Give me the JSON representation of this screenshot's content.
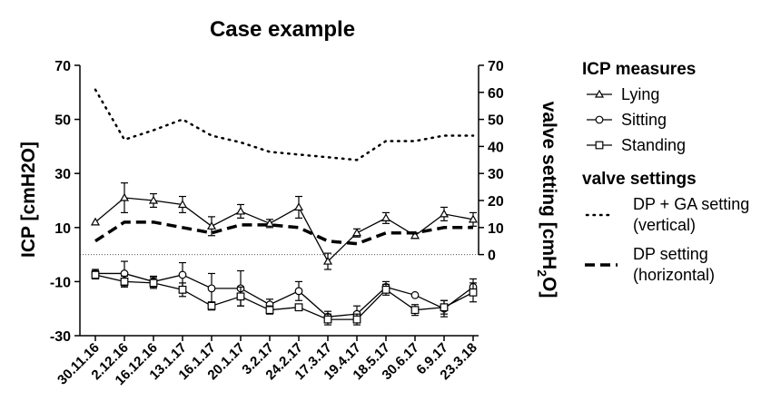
{
  "chart_data": {
    "type": "line",
    "title": "Case example",
    "ylabel": "ICP [cmH2O]",
    "y2label_parts": [
      "valve setting [cmH",
      "2",
      "O]"
    ],
    "ylim": [
      -30,
      70
    ],
    "y_ticks": [
      -30,
      -10,
      10,
      30,
      50,
      70
    ],
    "y2lim": [
      -30,
      70
    ],
    "y2_ticks": [
      0,
      10,
      20,
      30,
      40,
      50,
      60,
      70
    ],
    "categories": [
      "30.11.16",
      "2.12.16",
      "16.12.16",
      "13.1.17",
      "16.1.17",
      "20.1.17",
      "3.2.17",
      "24.2.17",
      "17.3.17",
      "19.4.17",
      "18.5.17",
      "30.6.17",
      "6.9.17",
      "23.3.18"
    ],
    "reference_line": 0,
    "legend": {
      "icp_heading": "ICP measures",
      "valve_heading": "valve settings",
      "valve_items": [
        {
          "series": "dp_ga",
          "lines": [
            "DP + GA setting",
            "(vertical)"
          ]
        },
        {
          "series": "dp",
          "lines": [
            "DP setting",
            "(horizontal)"
          ]
        }
      ]
    },
    "series": [
      {
        "key": "lying",
        "name": "Lying",
        "marker": "triangle",
        "axis": "left",
        "values": [
          12,
          21,
          20,
          18.5,
          10.5,
          16,
          11.5,
          17.5,
          -2.5,
          8,
          13.5,
          7,
          15,
          13
        ],
        "errors": [
          0,
          5.5,
          2.5,
          3,
          3.5,
          2.5,
          1.5,
          4,
          3,
          1.5,
          2,
          1,
          2.5,
          2.5
        ]
      },
      {
        "key": "sitting",
        "name": "Sitting",
        "marker": "circle",
        "axis": "left",
        "values": [
          -7,
          -7,
          -10,
          -7.5,
          -12.5,
          -12.5,
          -18.5,
          -13.5,
          -23,
          -22,
          -12,
          -15,
          -20,
          -12
        ],
        "errors": [
          1.5,
          4.5,
          2,
          4.5,
          5.5,
          6.5,
          2,
          3.5,
          2,
          3,
          2,
          0,
          3,
          3
        ]
      },
      {
        "key": "standing",
        "name": "Standing",
        "marker": "square",
        "axis": "left",
        "values": [
          -7.5,
          -10,
          -10.5,
          -13,
          -19,
          -15.5,
          -20.5,
          -19.5,
          -24,
          -24,
          -13,
          -20.5,
          -19.5,
          -14
        ],
        "errors": [
          1.5,
          2,
          2,
          2.5,
          1.5,
          3.5,
          1.5,
          1,
          2,
          2,
          2,
          2,
          2.5,
          3.5
        ]
      },
      {
        "key": "dp_ga",
        "axis": "right",
        "style": "dotted",
        "values": [
          61,
          42.5,
          46,
          50,
          44,
          41.5,
          38,
          37,
          36,
          35,
          42,
          42,
          44,
          44
        ]
      },
      {
        "key": "dp",
        "axis": "right",
        "style": "dashed",
        "values": [
          5,
          12,
          12,
          10,
          8,
          11,
          11,
          10,
          5,
          4,
          8,
          8,
          10,
          10
        ]
      }
    ]
  }
}
